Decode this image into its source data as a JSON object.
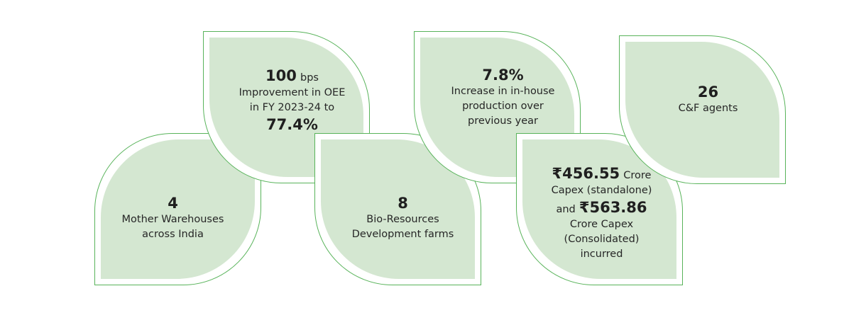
{
  "colors": {
    "leaf_fill": "#d4e7d1",
    "leaf_outline": "#58b35a",
    "text": "#1f1f1f"
  },
  "stats": [
    {
      "value": "4",
      "lines": [
        "Mother Warehouses",
        "across India"
      ]
    },
    {
      "value": "100",
      "unit": "bps",
      "lines": [
        "Improvement in OEE",
        "in FY 2023-24 to"
      ],
      "value2": "77.4%"
    },
    {
      "value": "8",
      "lines": [
        "Bio-Resources",
        "Development farms"
      ]
    },
    {
      "value": "7.8%",
      "lines": [
        "Increase in in-house",
        "production over",
        "previous year"
      ]
    },
    {
      "value": "₹456.55",
      "unit": "Crore",
      "line1": "Capex (standalone)",
      "and_word": "and",
      "value2": "₹563.86",
      "lines": [
        "Crore Capex",
        "(Consolidated)",
        "incurred"
      ]
    },
    {
      "value": "26",
      "lines": [
        "C&F agents"
      ]
    }
  ]
}
